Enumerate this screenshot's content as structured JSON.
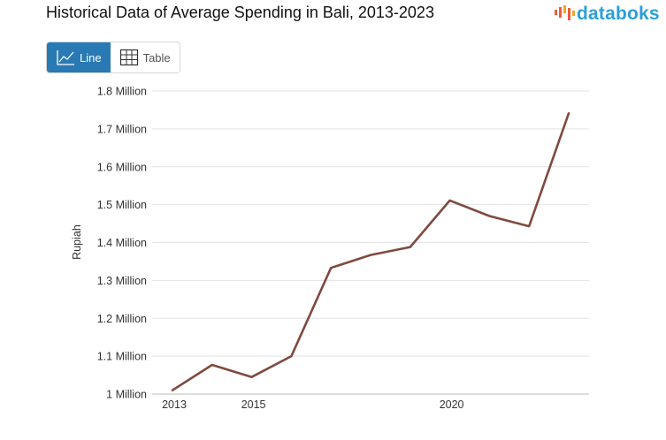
{
  "title": "Historical Data of Average Spending in Bali, 2013-2023",
  "brand": {
    "name": "databoks",
    "color": "#2a9fd8",
    "icon": "databoks-logo-icon"
  },
  "view_toggle": {
    "line_label": "Line",
    "table_label": "Table",
    "active": "Line",
    "line_icon": "line-chart-icon",
    "table_icon": "table-grid-icon",
    "active_color": "#2979b5"
  },
  "chart_data": {
    "type": "line",
    "title": "Historical Data of Average Spending in Bali, 2013-2023",
    "xlabel": "",
    "ylabel": "Rupiah",
    "xlim": [
      2013,
      2023
    ],
    "ylim": [
      1000000,
      1800000
    ],
    "x_ticks": [
      2013,
      2015,
      2020
    ],
    "x_tick_labels": [
      "2013",
      "2015",
      "2020"
    ],
    "y_ticks": [
      1000000,
      1100000,
      1200000,
      1300000,
      1400000,
      1500000,
      1600000,
      1700000,
      1800000
    ],
    "y_tick_labels": [
      "1 Million",
      "1.1 Million",
      "1.2 Million",
      "1.3 Million",
      "1.4 Million",
      "1.5 Million",
      "1.6 Million",
      "1.7 Million",
      "1.8 Million"
    ],
    "grid": true,
    "legend": "none",
    "series": [
      {
        "color": "#7f4a3e",
        "x": [
          2013,
          2014,
          2015,
          2016,
          2017,
          2018,
          2019,
          2020,
          2021,
          2022,
          2023
        ],
        "values": [
          1010000,
          1077000,
          1045000,
          1100000,
          1333000,
          1367000,
          1388000,
          1511000,
          1470000,
          1443000,
          1741000
        ]
      }
    ]
  }
}
